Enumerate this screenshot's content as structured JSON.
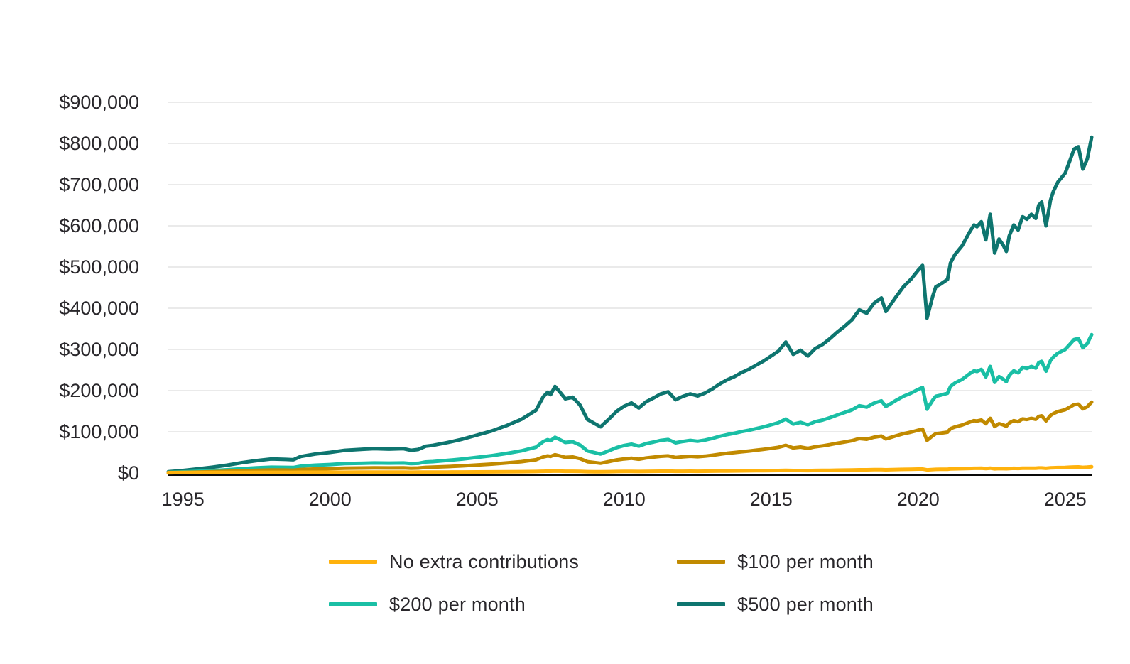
{
  "page": {
    "background": "#ffffff"
  },
  "chart_data": {
    "type": "line",
    "title": "",
    "xlabel": "",
    "ylabel": "",
    "unit": "USD",
    "values_unit": "thousands of USD",
    "grid": "horizontal-only",
    "legend_position": "bottom, two columns",
    "style": {
      "grid_color": "#e4e4e4",
      "axis_color": "#0a0a0a",
      "text_color": "#29272b",
      "background": "#ffffff"
    },
    "x_axis": {
      "range_years": [
        1994.5,
        2025.9
      ],
      "tick_years": [
        1995,
        2000,
        2005,
        2010,
        2015,
        2020,
        2025
      ],
      "tick_labels": [
        "1995",
        "2000",
        "2005",
        "2010",
        "2015",
        "2020",
        "2025"
      ]
    },
    "y_axis": {
      "range_usd": [
        0,
        900000
      ],
      "tick_values_usd": [
        0,
        100000,
        200000,
        300000,
        400000,
        500000,
        600000,
        700000,
        800000,
        900000
      ],
      "tick_labels": [
        "$0",
        "$100,000",
        "$200,000",
        "$300,000",
        "$400,000",
        "$500,000",
        "$600,000",
        "$700,000",
        "$800,000",
        "$900,000"
      ]
    },
    "x_years": [
      1994.5,
      1995,
      1995.5,
      1996,
      1996.5,
      1997,
      1997.5,
      1998,
      1998.5,
      1998.75,
      1999,
      1999.5,
      2000,
      2000.5,
      2001,
      2001.5,
      2002,
      2002.5,
      2002.75,
      2003,
      2003.25,
      2003.5,
      2004,
      2004.5,
      2005,
      2005.5,
      2006,
      2006.5,
      2007,
      2007.25,
      2007.4,
      2007.5,
      2007.65,
      2007.8,
      2008,
      2008.25,
      2008.5,
      2008.75,
      2009,
      2009.2,
      2009.5,
      2009.75,
      2010,
      2010.25,
      2010.5,
      2010.75,
      2011,
      2011.25,
      2011.5,
      2011.75,
      2012,
      2012.25,
      2012.5,
      2012.75,
      2013,
      2013.25,
      2013.5,
      2013.75,
      2014,
      2014.25,
      2014.5,
      2014.75,
      2015,
      2015.25,
      2015.5,
      2015.75,
      2016,
      2016.25,
      2016.5,
      2016.75,
      2017,
      2017.25,
      2017.5,
      2017.75,
      2018,
      2018.25,
      2018.5,
      2018.75,
      2018.9,
      2019,
      2019.25,
      2019.5,
      2019.75,
      2020,
      2020.15,
      2020.3,
      2020.5,
      2020.6,
      2020.75,
      2021,
      2021.1,
      2021.25,
      2021.5,
      2021.75,
      2021.9,
      2022,
      2022.15,
      2022.3,
      2022.45,
      2022.6,
      2022.75,
      2022.9,
      2023,
      2023.1,
      2023.25,
      2023.4,
      2023.55,
      2023.7,
      2023.85,
      2024,
      2024.1,
      2024.2,
      2024.35,
      2024.5,
      2024.6,
      2024.75,
      2025,
      2025.15,
      2025.3,
      2025.45,
      2025.6,
      2025.75,
      2025.9
    ],
    "series": [
      {
        "name": "No extra contributions",
        "color": "#ffb20d",
        "final_value_thousands": 15,
        "values_thousands_usd": [
          1.1,
          1.1,
          1.2,
          1.2,
          1.3,
          1.4,
          1.5,
          1.6,
          1.6,
          1.6,
          1.7,
          1.8,
          1.9,
          1.9,
          2,
          2,
          2,
          2,
          1.9,
          2,
          2.1,
          2.2,
          2.3,
          2.4,
          2.6,
          2.8,
          3,
          3.2,
          3.6,
          4.2,
          4.4,
          4.3,
          4.6,
          4.4,
          4.1,
          4.2,
          3.8,
          3.2,
          3.1,
          2.9,
          3.3,
          3.6,
          3.8,
          3.9,
          3.7,
          4,
          4.1,
          4.3,
          4.4,
          4.1,
          4.2,
          4.3,
          4.2,
          4.3,
          4.5,
          4.7,
          4.9,
          5,
          5.2,
          5.3,
          5.5,
          5.7,
          5.9,
          6.1,
          6.5,
          6,
          6.1,
          5.9,
          6.2,
          6.4,
          6.6,
          6.9,
          7.1,
          7.4,
          7.8,
          7.7,
          8.1,
          8.3,
          7.7,
          7.9,
          8.4,
          8.8,
          9.1,
          9.5,
          9.7,
          7.5,
          8.4,
          8.8,
          8.9,
          9.1,
          9.8,
          10.1,
          10.5,
          11.1,
          11.4,
          11.3,
          11.5,
          10.7,
          11.8,
          10.2,
          10.8,
          10.5,
          10.3,
          10.9,
          11.4,
          11.1,
          11.7,
          11.6,
          11.8,
          11.6,
          12.2,
          12.3,
          11.3,
          12.4,
          12.8,
          13.1,
          13.5,
          14,
          14.5,
          14.6,
          13.7,
          14.1,
          15
        ]
      },
      {
        "name": "$100 per month",
        "color": "#c18a00",
        "final_value_thousands": 172,
        "values_thousands_usd": [
          0.6,
          1.3,
          2.1,
          3,
          4,
          5.3,
          6.3,
          7.2,
          7,
          6.8,
          8.4,
          9.7,
          10.6,
          11.6,
          12,
          12.4,
          12.2,
          12.4,
          11.6,
          12,
          13.7,
          14.1,
          15.6,
          17.3,
          19.4,
          21.5,
          24.3,
          27.4,
          32.1,
          39,
          41.4,
          40.1,
          44.3,
          41.8,
          38,
          38.8,
          34.8,
          27.4,
          25.3,
          23.6,
          27.9,
          31.7,
          34.2,
          35.9,
          33.3,
          36.5,
          38.4,
          40.5,
          41.6,
          37.6,
          39.2,
          40.5,
          39.5,
          40.9,
          43,
          45.6,
          47.7,
          49.4,
          51.5,
          53.2,
          55.3,
          57.4,
          59.9,
          62.5,
          67.1,
          60.8,
          62.9,
          59.9,
          63.7,
          65.8,
          68.8,
          72.2,
          75.1,
          78.5,
          83.6,
          81.9,
          86.9,
          89.7,
          82.7,
          84.8,
          90.3,
          95.4,
          99.2,
          103.8,
          106.3,
          79.3,
          90.7,
          95.4,
          96.6,
          99.2,
          107.6,
          111.8,
          116.5,
          123.4,
          127,
          126.2,
          128.7,
          119.4,
          132.5,
          112.7,
          119.8,
          116.5,
          113.5,
          121.5,
          127,
          124.5,
          131.2,
          130,
          132.5,
          130.4,
          137.2,
          138.8,
          126.6,
          139.7,
          144.3,
          149,
          153.6,
          159.5,
          165.8,
          167.1,
          155.7,
          160.8,
          172
        ]
      },
      {
        "name": "$200 per month",
        "color": "#1abfa5",
        "final_value_thousands": 336,
        "values_thousands_usd": [
          1.2,
          2.5,
          4.1,
          5.8,
          7.8,
          10.3,
          12.4,
          14,
          13.6,
          13.2,
          16.5,
          19,
          20.6,
          22.7,
          23.5,
          24.3,
          23.9,
          24.3,
          22.7,
          23.5,
          26.8,
          27.6,
          30.5,
          33.8,
          37.9,
          42,
          47.4,
          53.6,
          62.6,
          76.2,
          80.8,
          78.3,
          86.5,
          81.6,
          74.2,
          75.8,
          68,
          53.6,
          49.4,
          46.1,
          54.4,
          61.8,
          66.7,
          70,
          65.1,
          71.3,
          75,
          79.1,
          81.2,
          73.3,
          76.6,
          79.1,
          77,
          79.9,
          84,
          89,
          93.1,
          96.4,
          100.5,
          103.8,
          107.9,
          112.1,
          117,
          122,
          131,
          118.7,
          122.8,
          117,
          124.4,
          128.5,
          134.3,
          140.9,
          146.7,
          153.3,
          163.2,
          159.9,
          169.7,
          175.1,
          161.5,
          165.6,
          176.3,
          186.2,
          193.6,
          202.7,
          207.6,
          154.9,
          177.2,
          186.2,
          188.7,
          193.6,
          210.1,
          218.4,
          227.4,
          241,
          248,
          246.4,
          251.3,
          233.2,
          258.7,
          220,
          234,
          227.4,
          221.7,
          237.3,
          248,
          243.1,
          256.3,
          253.8,
          258.7,
          254.6,
          267.8,
          271.1,
          247.2,
          272.7,
          281.8,
          290.9,
          299.9,
          311.5,
          323.8,
          326.3,
          304.1,
          313.9,
          335.8
        ]
      },
      {
        "name": "$500 per month",
        "color": "#0e756f",
        "final_value_thousands": 815,
        "values_thousands_usd": [
          3,
          6,
          10,
          14,
          19,
          25,
          30,
          34,
          33,
          32,
          40,
          46,
          50,
          55,
          57,
          59,
          58,
          59,
          55,
          57,
          65,
          67,
          74,
          82,
          92,
          102,
          115,
          130,
          152,
          185,
          196,
          190,
          210,
          198,
          180,
          184,
          165,
          130,
          120,
          112,
          132,
          150,
          162,
          170,
          158,
          173,
          182,
          192,
          197,
          178,
          186,
          192,
          187,
          194,
          204,
          216,
          226,
          234,
          244,
          252,
          262,
          272,
          284,
          296,
          318,
          288,
          298,
          284,
          302,
          312,
          326,
          342,
          356,
          372,
          396,
          388,
          412,
          425,
          392,
          402,
          428,
          452,
          470,
          492,
          504,
          376,
          430,
          452,
          458,
          470,
          510,
          530,
          552,
          585,
          602,
          598,
          610,
          566,
          628,
          534,
          568,
          552,
          538,
          576,
          602,
          590,
          622,
          616,
          628,
          618,
          650,
          658,
          600,
          662,
          684,
          706,
          728,
          756,
          786,
          792,
          738,
          762,
          815
        ]
      }
    ],
    "legend_rows": [
      [
        0,
        1
      ],
      [
        2,
        3
      ]
    ]
  }
}
